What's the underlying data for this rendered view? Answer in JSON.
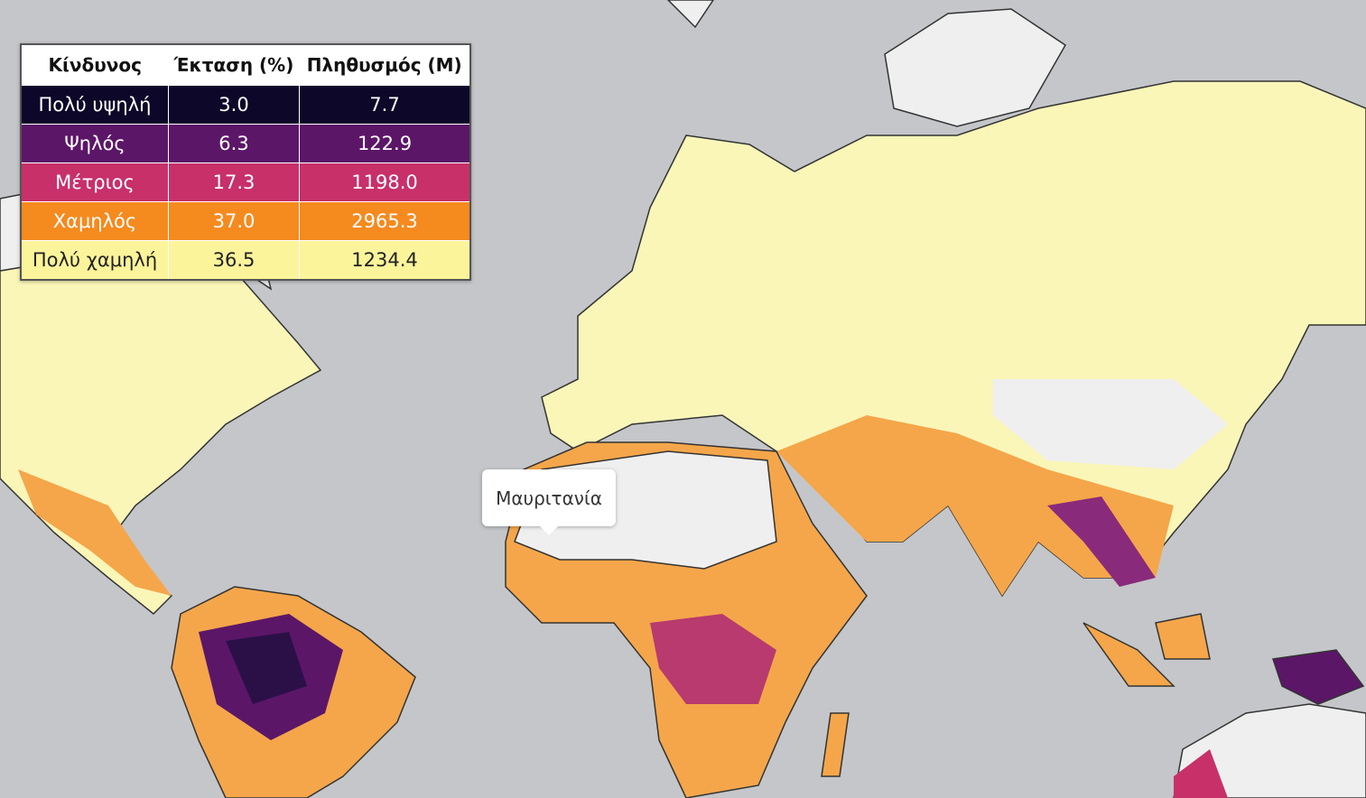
{
  "table": {
    "headers": [
      "Κίνδυνος",
      "Έκταση (%)",
      "Πληθυσμός (M)"
    ],
    "rows": [
      [
        "Πολύ υψηλή",
        "3.0",
        "7.7"
      ],
      [
        "Ψηλός",
        "6.3",
        "122.9"
      ],
      [
        "Μέτριος",
        "17.3",
        "1198.0"
      ],
      [
        "Χαμηλός",
        "37.0",
        "2965.3"
      ],
      [
        "Πολύ χαμηλή",
        "36.5",
        "1234.4"
      ]
    ]
  },
  "tooltip": {
    "text": "Μαυριτανία"
  }
}
